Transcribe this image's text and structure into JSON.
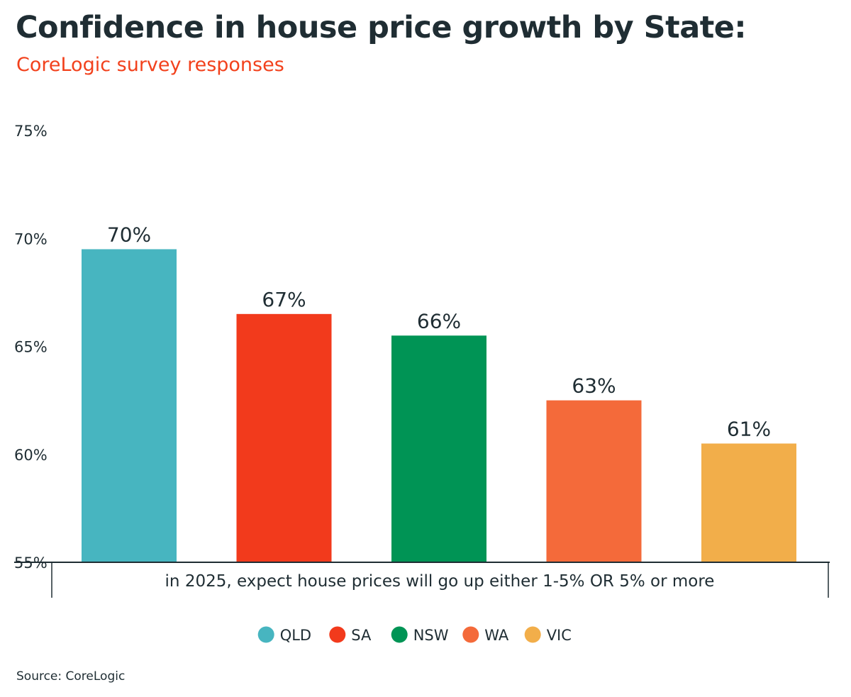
{
  "header": {
    "title": "Confidence in house price growth by State:",
    "subtitle": "CoreLogic survey responses"
  },
  "footer": {
    "source": "Source: CoreLogic"
  },
  "chart_data": {
    "type": "bar",
    "title": "Confidence in house price growth by State:",
    "subtitle": "CoreLogic survey responses",
    "category_label": "in 2025, expect house prices will go up either 1-5% OR 5% or more",
    "ylim": [
      55,
      75
    ],
    "yticks": [
      {
        "value": 75,
        "label": "75%"
      },
      {
        "value": 70,
        "label": "70%"
      },
      {
        "value": 65,
        "label": "65%"
      },
      {
        "value": 60,
        "label": "60%"
      },
      {
        "value": 55,
        "label": "55%"
      }
    ],
    "grid": false,
    "legend_position": "bottom-center",
    "series": [
      {
        "name": "QLD",
        "value": 69.5,
        "label": "70%",
        "color": "#47b5c0"
      },
      {
        "name": "SA",
        "value": 66.5,
        "label": "67%",
        "color": "#f23a1c"
      },
      {
        "name": "NSW",
        "value": 65.5,
        "label": "66%",
        "color": "#009455"
      },
      {
        "name": "WA",
        "value": 62.5,
        "label": "63%",
        "color": "#f46a3a"
      },
      {
        "name": "VIC",
        "value": 60.5,
        "label": "61%",
        "color": "#f2ae4a"
      }
    ]
  }
}
